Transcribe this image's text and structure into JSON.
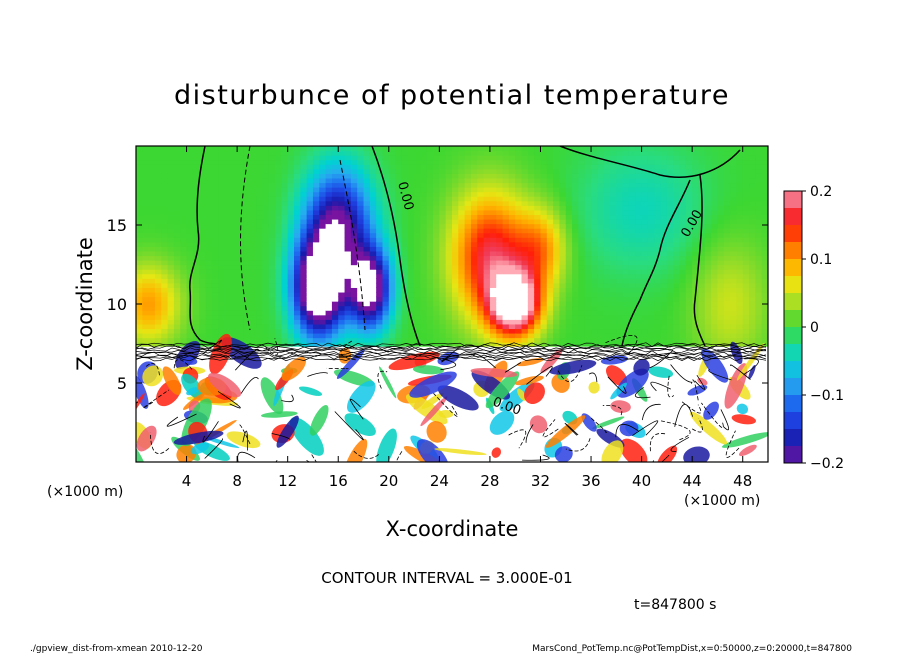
{
  "chart_data": {
    "type": "heatmap",
    "title": "disturbunce of potential temperature",
    "xlabel": "X-coordinate",
    "ylabel": "Z-coordinate",
    "x_unit": "(×1000 m)",
    "y_unit": "(×1000 m)",
    "xlim": [
      0,
      50
    ],
    "ylim": [
      0,
      20
    ],
    "x_ticks": [
      4,
      8,
      12,
      16,
      20,
      24,
      28,
      32,
      36,
      40,
      44,
      48
    ],
    "y_ticks": [
      5,
      10,
      15
    ],
    "colorbar": {
      "range": [
        -0.2,
        0.2
      ],
      "ticks": [
        0.2,
        0.1,
        0,
        -0.1,
        -0.2
      ],
      "tick_labels": [
        "0.2",
        "0.1",
        "0",
        "−0.1",
        "−0.2"
      ]
    },
    "contour_interval_text": "CONTOUR INTERVAL = 3.000E-01",
    "contour_labels": [
      "0.00",
      "0.00",
      "0.00"
    ],
    "time_text": "t=847800 s",
    "footer_left": "./gpview_dist-from-xmean   2010-12-20",
    "footer_right": "MarsCond_PotTemp.nc@PotTempDist,x=0:50000,z=0:20000,t=847800",
    "features": [
      {
        "x": 16,
        "z": 15,
        "value": -0.2,
        "sx": 2.6,
        "sz": 3.5
      },
      {
        "x": 14.5,
        "z": 11,
        "value": -0.3,
        "sx": 2.0,
        "sz": 3.0
      },
      {
        "x": 18.5,
        "z": 11,
        "value": -0.25,
        "sx": 1.6,
        "sz": 2.5
      },
      {
        "x": 28,
        "z": 13,
        "value": 0.17,
        "sx": 3.0,
        "sz": 4.0
      },
      {
        "x": 30,
        "z": 10,
        "value": 0.25,
        "sx": 2.0,
        "sz": 2.0
      },
      {
        "x": 32,
        "z": 13.5,
        "value": 0.1,
        "sx": 2.0,
        "sz": 2.5
      },
      {
        "x": 1,
        "z": 10,
        "value": 0.1,
        "sx": 2.5,
        "sz": 2.5
      },
      {
        "x": 47,
        "z": 10,
        "value": 0.05,
        "sx": 3.0,
        "sz": 4.0
      },
      {
        "x": 40,
        "z": 16,
        "value": -0.04,
        "sx": 5.0,
        "sz": 4.0
      }
    ]
  }
}
